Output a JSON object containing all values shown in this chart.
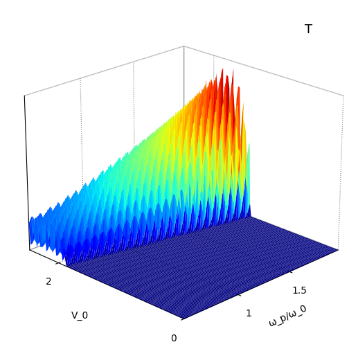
{
  "title": "T",
  "xlabel": "V_0",
  "ylabel": "ω_p/ω_0",
  "zlabel": "",
  "v0_range": [
    0,
    2.5
  ],
  "omega_range": [
    0.5,
    2.0
  ],
  "x_ticks": [
    0,
    2
  ],
  "y_ticks": [
    1,
    1.5
  ],
  "colormap": "jet",
  "elev": 22,
  "azim": -135
}
